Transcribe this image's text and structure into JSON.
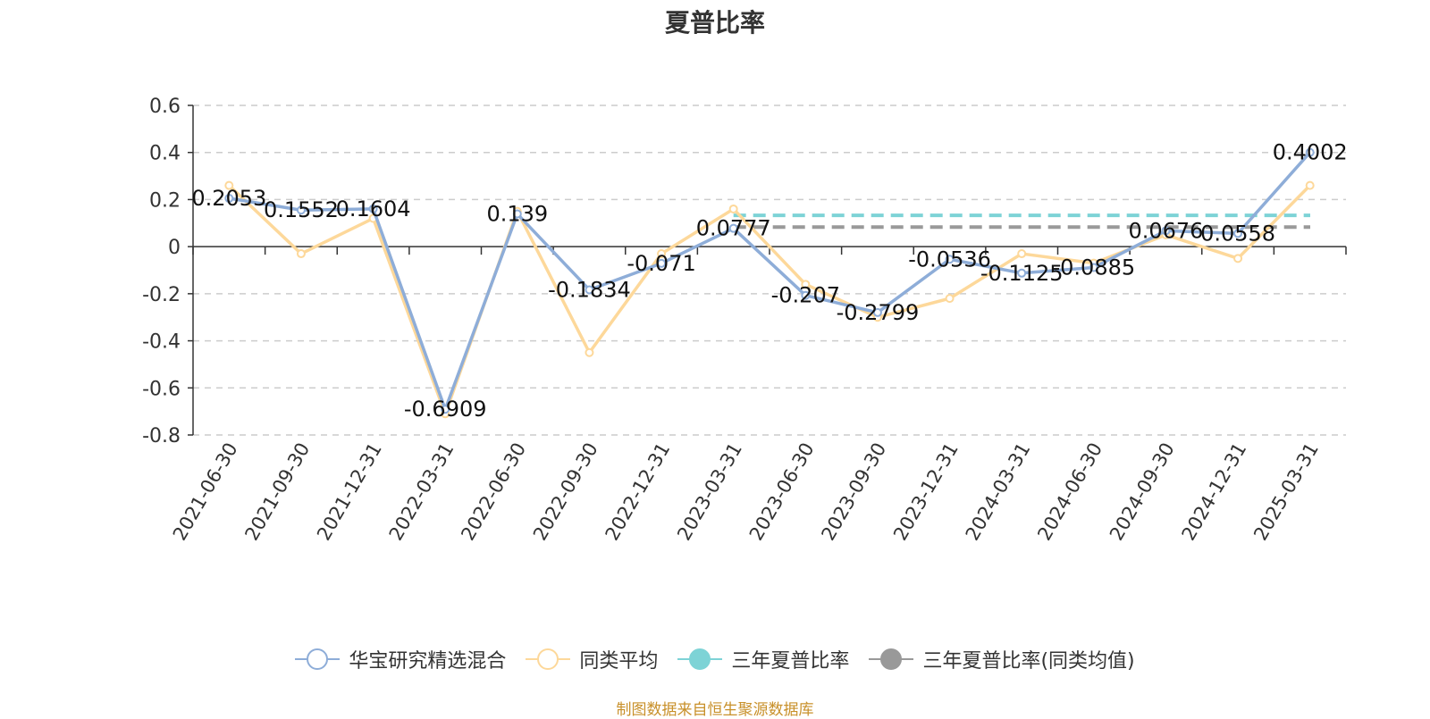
{
  "chart_data": {
    "type": "line",
    "title": "夏普比率",
    "categories": [
      "2021-06-30",
      "2021-09-30",
      "2021-12-31",
      "2022-03-31",
      "2022-06-30",
      "2022-09-30",
      "2022-12-31",
      "2023-03-31",
      "2023-06-30",
      "2023-09-30",
      "2023-12-31",
      "2024-03-31",
      "2024-06-30",
      "2024-09-30",
      "2024-12-31",
      "2025-03-31"
    ],
    "ylim": [
      -0.8,
      0.6
    ],
    "yticks": [
      "0.6",
      "0.4",
      "0.2",
      "0",
      "-0.2",
      "-0.4",
      "-0.6",
      "-0.8"
    ],
    "grid": true,
    "legend_position": "bottom",
    "series": [
      {
        "name": "华宝研究精选混合",
        "color": "#8eadd8",
        "values": [
          0.2053,
          0.1552,
          0.1604,
          -0.6909,
          0.139,
          -0.1834,
          -0.071,
          0.0777,
          -0.207,
          -0.2799,
          -0.0536,
          -0.1125,
          -0.0885,
          0.0676,
          0.0558,
          0.4002
        ],
        "labels": [
          "0.2053",
          "0.1552",
          "0.1604",
          "-0.6909",
          "0.139",
          "-0.1834",
          "-0.071",
          "0.0777",
          "-0.207",
          "-0.2799",
          "-0.0536",
          "-0.1125",
          "-0.0885",
          "0.0676",
          "0.0558",
          "0.4002"
        ]
      },
      {
        "name": "同类平均",
        "color": "#fdd89a",
        "values": [
          0.26,
          -0.03,
          0.12,
          -0.71,
          0.15,
          -0.45,
          -0.03,
          0.16,
          -0.16,
          -0.3,
          -0.22,
          -0.03,
          -0.07,
          0.05,
          -0.05,
          0.26
        ]
      },
      {
        "name": "三年夏普比率",
        "color": "#7dd3d6",
        "dashed": true,
        "value": 0.133,
        "from_index": 7.5,
        "to_index": 16
      },
      {
        "name": "三年夏普比率(同类均值)",
        "color": "#999999",
        "dashed": true,
        "value": 0.083,
        "from_index": 7.5,
        "to_index": 16
      }
    ]
  },
  "source_note": "制图数据来自恒生聚源数据库"
}
